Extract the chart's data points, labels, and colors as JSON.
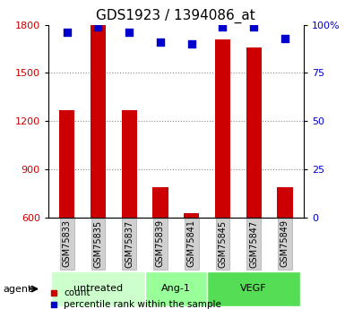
{
  "title": "GDS1923 / 1394086_at",
  "samples": [
    "GSM75833",
    "GSM75835",
    "GSM75837",
    "GSM75839",
    "GSM75841",
    "GSM75845",
    "GSM75847",
    "GSM75849"
  ],
  "count_values": [
    1270,
    1800,
    1265,
    790,
    625,
    1710,
    1660,
    790
  ],
  "percentile_values": [
    96,
    99,
    96,
    91,
    90,
    99,
    99,
    93
  ],
  "ylim_left": [
    600,
    1800
  ],
  "ylim_right": [
    0,
    100
  ],
  "yticks_left": [
    600,
    900,
    1200,
    1500,
    1800
  ],
  "yticks_right": [
    0,
    25,
    50,
    75,
    100
  ],
  "ytick_labels_right": [
    "0",
    "25",
    "50",
    "75",
    "100%"
  ],
  "groups": [
    {
      "label": "untreated",
      "start": 0,
      "end": 3,
      "color": "#ccffcc"
    },
    {
      "label": "Ang-1",
      "start": 3,
      "end": 5,
      "color": "#99ff99"
    },
    {
      "label": "VEGF",
      "start": 5,
      "end": 8,
      "color": "#55dd55"
    }
  ],
  "bar_color": "#cc0000",
  "dot_color": "#0000cc",
  "bar_width": 0.5,
  "grid_color": "#888888",
  "tick_color_left": "#cc0000",
  "tick_color_right": "#0000cc",
  "legend_count_color": "#cc0000",
  "legend_pct_color": "#0000cc",
  "agent_label": "agent",
  "legend_count_label": "count",
  "legend_pct_label": "percentile rank within the sample"
}
